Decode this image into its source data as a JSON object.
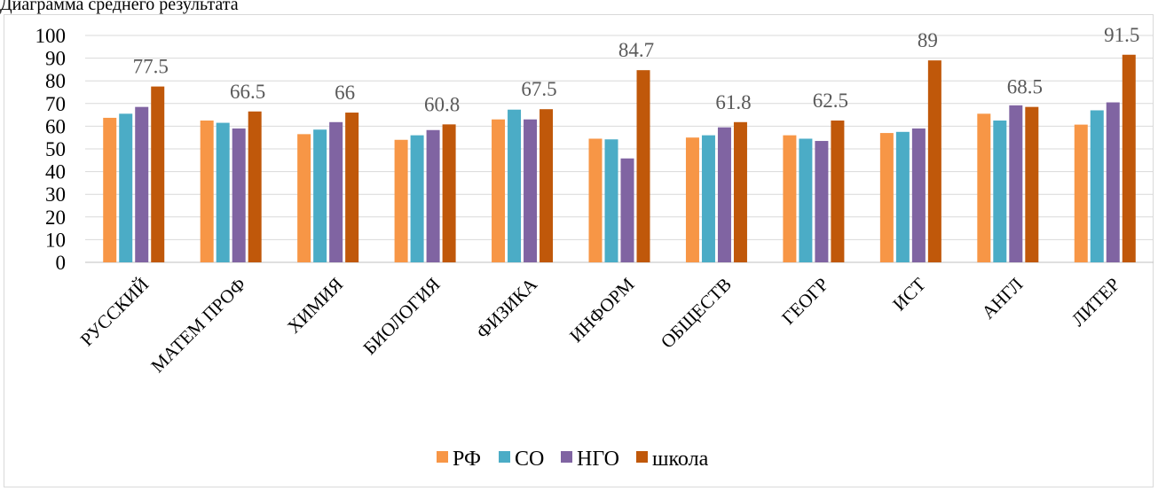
{
  "caption": "Диаграмма среднего результата",
  "colors": {
    "РФ": "#f79646",
    "СО": "#4bacc6",
    "НГО": "#8064a2",
    "школа": "#c0580a",
    "grid": "#d9d9d9",
    "axis": "#bfbfbf"
  },
  "chart_data": {
    "type": "bar",
    "title": "",
    "xlabel": "",
    "ylabel": "",
    "ylim": [
      0,
      100
    ],
    "yticks": [
      0,
      10,
      20,
      30,
      40,
      50,
      60,
      70,
      80,
      90,
      100
    ],
    "grid": true,
    "legend_position": "bottom",
    "categories": [
      "РУССКИЙ",
      "МАТЕМ ПРОФ",
      "ХИМИЯ",
      "БИОЛОГИЯ",
      "ФИЗИКА",
      "ИНФОРМ",
      "ОБЩЕСТВ",
      "ГЕОГР",
      "ИСТ",
      "АНГЛ",
      "ЛИТЕР"
    ],
    "series": [
      {
        "name": "РФ",
        "values": [
          63.7,
          62.5,
          56.5,
          54,
          63,
          54.5,
          55,
          56,
          57,
          65.5,
          60.7
        ]
      },
      {
        "name": "СО",
        "values": [
          65.5,
          61.5,
          58.5,
          56,
          67.3,
          54.2,
          56,
          54.5,
          57.5,
          62.5,
          67
        ]
      },
      {
        "name": "НГО",
        "values": [
          68.5,
          59,
          61.8,
          58.3,
          63,
          45.8,
          59.5,
          53.5,
          59,
          69.2,
          70.5
        ]
      },
      {
        "name": "школа",
        "values": [
          77.5,
          66.5,
          66,
          60.8,
          67.5,
          84.7,
          61.8,
          62.5,
          89,
          68.5,
          91.5
        ]
      }
    ],
    "data_labels": {
      "series": "школа",
      "values": [
        "77.5",
        "66.5",
        "66",
        "60.8",
        "67.5",
        "84.7",
        "61.8",
        "62.5",
        "89",
        "68.5",
        "91.5"
      ]
    }
  }
}
